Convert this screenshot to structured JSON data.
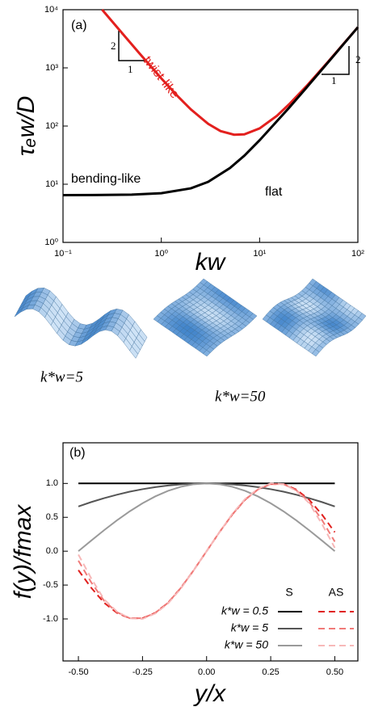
{
  "chart_data": [
    {
      "type": "line",
      "x_scale": "log",
      "y_scale": "log",
      "xlabel": "kw",
      "ylabel": "τₑw/D",
      "annotations": [
        "(a)",
        "twist-like",
        "bending-like",
        "flat",
        "2",
        "1",
        "2",
        "1"
      ],
      "xlim": [
        0.1,
        100
      ],
      "ylim": [
        1,
        10000
      ],
      "xticks": [
        {
          "value": 0.1,
          "label": "10⁻¹"
        },
        {
          "value": 1,
          "label": "10⁰"
        },
        {
          "value": 10,
          "label": "10¹"
        },
        {
          "value": 100,
          "label": "10²"
        }
      ],
      "yticks": [
        {
          "value": 1,
          "label": "10⁰"
        },
        {
          "value": 10,
          "label": "10¹"
        },
        {
          "value": 100,
          "label": "10²"
        },
        {
          "value": 1000,
          "label": "10³"
        },
        {
          "value": 10000,
          "label": "10⁴"
        }
      ],
      "series": [
        {
          "color": "#e3201e",
          "x": [
            0.25,
            0.4,
            0.6,
            1,
            1.5,
            2,
            3,
            4,
            5.5,
            7,
            10,
            15,
            20,
            30,
            50,
            70,
            100
          ],
          "values": [
            10000,
            3941,
            1771,
            660,
            314,
            193,
            109,
            82,
            71,
            72,
            91,
            150,
            237,
            486,
            1285,
            2485,
            5000
          ]
        },
        {
          "color": "#000000",
          "x": [
            0.1,
            0.2,
            0.5,
            1,
            2,
            3,
            5,
            7,
            10,
            20,
            30,
            50,
            70,
            100
          ],
          "values": [
            6.5,
            6.52,
            6.63,
            7,
            8.5,
            11,
            19,
            31,
            57,
            207,
            457,
            1257,
            2457,
            5000
          ]
        }
      ]
    },
    {
      "type": "line",
      "xlabel": "y/x",
      "ylabel": "f(y)/fmax",
      "annotations": [
        "(b)"
      ],
      "xlim": [
        -0.56,
        0.59
      ],
      "ylim": [
        -1.62,
        1.6
      ],
      "xticks": [
        {
          "value": -0.5,
          "label": "-0.50"
        },
        {
          "value": -0.25,
          "label": "-0.25"
        },
        {
          "value": 0,
          "label": "0.00"
        },
        {
          "value": 0.25,
          "label": "0.25"
        },
        {
          "value": 0.5,
          "label": "0.50"
        }
      ],
      "yticks": [
        {
          "value": -1,
          "label": "-1.0"
        },
        {
          "value": -0.5,
          "label": "-0.5"
        },
        {
          "value": 0,
          "label": "0.0"
        },
        {
          "value": 0.5,
          "label": "0.5"
        },
        {
          "value": 1,
          "label": "1.0"
        }
      ],
      "legend_columns": [
        "S",
        "AS"
      ],
      "x": [
        -0.5,
        -0.45,
        -0.4,
        -0.35,
        -0.3,
        -0.25,
        -0.2,
        -0.15,
        -0.1,
        -0.05,
        0,
        0.05,
        0.1,
        0.15,
        0.2,
        0.25,
        0.3,
        0.35,
        0.4,
        0.45,
        0.5
      ],
      "series": [
        {
          "name": "k*w = 0.5",
          "lines": [
            {
              "color": "#000000",
              "dash": false,
              "values": [
                1,
                1,
                1,
                1,
                1,
                1,
                1,
                1,
                1,
                1,
                1,
                1,
                1,
                1,
                1,
                1,
                1,
                1,
                1,
                1,
                1
              ]
            },
            {
              "color": "#e0201e",
              "dash": true,
              "values": [
                -0.28,
                -0.54,
                -0.76,
                -0.91,
                -0.99,
                -0.99,
                -0.91,
                -0.76,
                -0.54,
                -0.28,
                0,
                0.28,
                0.54,
                0.76,
                0.91,
                0.99,
                0.99,
                0.91,
                0.76,
                0.54,
                0.28
              ]
            }
          ]
        },
        {
          "name": "k*w = 5",
          "lines": [
            {
              "color": "#555555",
              "dash": false,
              "values": [
                0.66,
                0.725,
                0.782,
                0.833,
                0.878,
                0.915,
                0.946,
                0.969,
                0.986,
                0.997,
                1,
                0.997,
                0.986,
                0.969,
                0.946,
                0.915,
                0.878,
                0.833,
                0.782,
                0.725,
                0.66
              ]
            },
            {
              "color": "#f07a78",
              "dash": true,
              "values": [
                -0.14,
                -0.46,
                -0.73,
                -0.9,
                -0.99,
                -0.99,
                -0.91,
                -0.76,
                -0.54,
                -0.28,
                0,
                0.28,
                0.54,
                0.76,
                0.91,
                0.99,
                0.99,
                0.9,
                0.73,
                0.46,
                0.14
              ]
            }
          ]
        },
        {
          "name": "k*w = 50",
          "lines": [
            {
              "color": "#9a9a9a",
              "dash": false,
              "values": [
                0,
                0.156,
                0.309,
                0.454,
                0.588,
                0.707,
                0.809,
                0.891,
                0.951,
                0.988,
                1,
                0.988,
                0.951,
                0.891,
                0.809,
                0.707,
                0.588,
                0.454,
                0.309,
                0.156,
                0
              ]
            },
            {
              "color": "#f7b8b8",
              "dash": true,
              "values": [
                -0.05,
                -0.4,
                -0.71,
                -0.89,
                -0.99,
                -1,
                -0.92,
                -0.77,
                -0.55,
                -0.28,
                0,
                0.28,
                0.55,
                0.77,
                0.92,
                1,
                0.99,
                0.89,
                0.71,
                0.4,
                0.05
              ]
            }
          ]
        }
      ]
    }
  ],
  "figure_labels": [
    "k*w=5",
    "k*w=50"
  ]
}
